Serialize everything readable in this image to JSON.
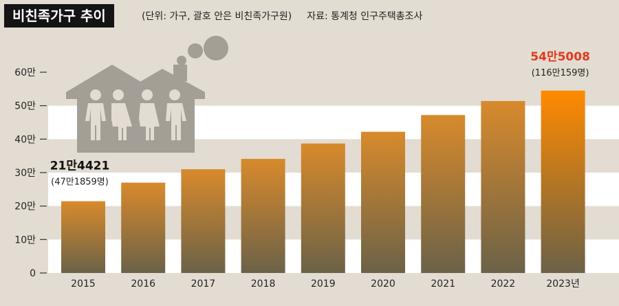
{
  "title": "비친족가구 추이",
  "unit_note": "(단위: 가구, 괄호 안은 비친족가구원)",
  "source": "자료: 통계청 인구주택총조사",
  "colors": {
    "bar_top": "#d88a2c",
    "bar_bottom": "#6b6248",
    "last_bar_top": "#ff8a00",
    "highlight_text": "#e8381b",
    "band": "#ffffff",
    "house": "#a39e96"
  },
  "icons": [
    "house-family-icon",
    "chimney-smoke-icon"
  ],
  "chart_data": {
    "type": "bar",
    "title": "비친족가구 추이",
    "categories": [
      "2015",
      "2016",
      "2017",
      "2018",
      "2019",
      "2020",
      "2021",
      "2022",
      "2023년"
    ],
    "values": [
      214421,
      270000,
      310000,
      341000,
      387000,
      422000,
      472000,
      514000,
      545008
    ],
    "ylim": [
      0,
      600000
    ],
    "yticks": [
      {
        "value": 0,
        "label": "0"
      },
      {
        "value": 100000,
        "label": "10만"
      },
      {
        "value": 200000,
        "label": "20만"
      },
      {
        "value": 300000,
        "label": "30만"
      },
      {
        "value": 400000,
        "label": "40만"
      },
      {
        "value": 500000,
        "label": "50만"
      },
      {
        "value": 600000,
        "label": "60만"
      }
    ],
    "annotations": [
      {
        "category": "2015",
        "value_label": "21만4421",
        "members_label": "(47만1859명)"
      },
      {
        "category": "2023년",
        "value_label": "54만5008",
        "members_label": "(116만159명)"
      }
    ],
    "grid": "alternating white horizontal bands"
  }
}
